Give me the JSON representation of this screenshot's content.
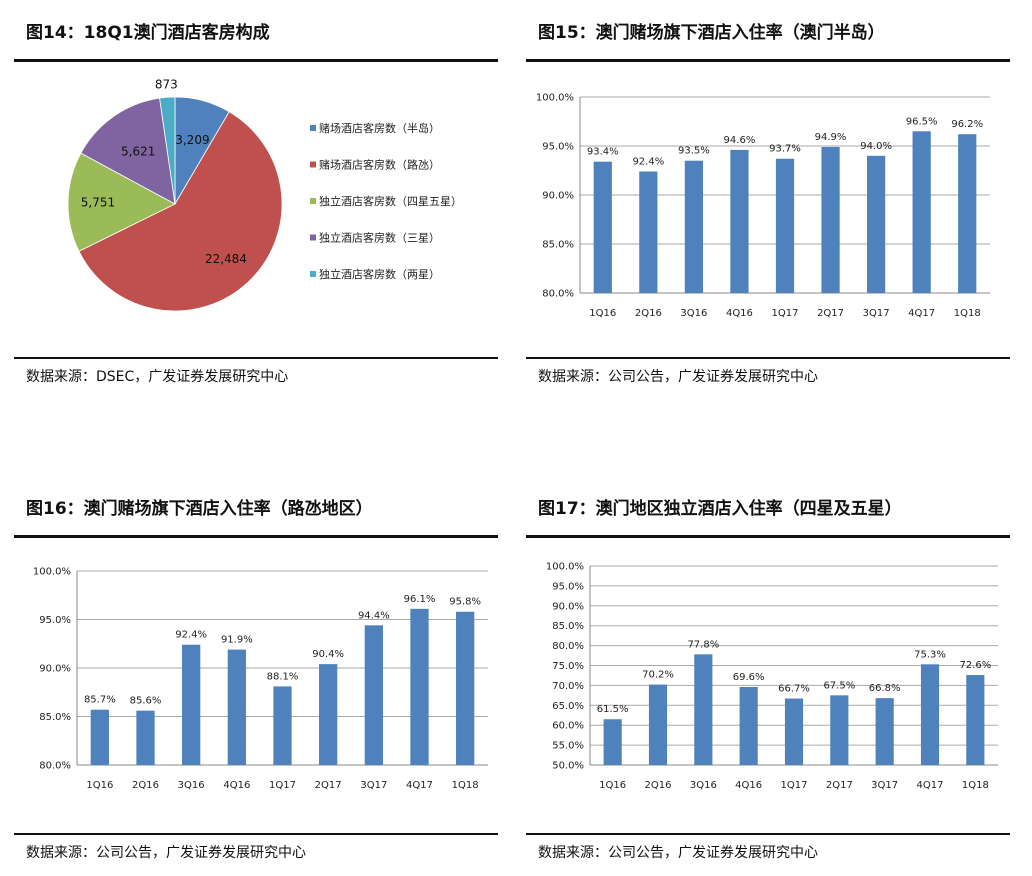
{
  "panels": [
    {
      "title": "图14：18Q1澳门酒店客房构成",
      "source": "数据来源：DSEC，广发证券发展研究中心"
    },
    {
      "title": "图15：澳门赌场旗下酒店入住率（澳门半岛）",
      "source": "数据来源：公司公告，广发证券发展研究中心"
    },
    {
      "title": "图16：澳门赌场旗下酒店入住率（路氹地区）",
      "source": "数据来源：公司公告，广发证券发展研究中心"
    },
    {
      "title": "图17：澳门地区独立酒店入住率（四星及五星）",
      "source": "数据来源：公司公告，广发证券发展研究中心"
    }
  ],
  "chart_data": [
    {
      "type": "pie",
      "legend_position": "right",
      "labels": [
        "赌场酒店客房数（半岛）",
        "赌场酒店客房数（路氹）",
        "独立酒店客房数（四星五星）",
        "独立酒店客房数（三星）",
        "独立酒店客房数（两星）"
      ],
      "values": [
        3209,
        22484,
        5751,
        5621,
        873
      ],
      "value_labels": [
        "3,209",
        "22,484",
        "5,751",
        "5,621",
        "873"
      ],
      "colors": [
        "#4f81bd",
        "#c0504d",
        "#9bbb59",
        "#8064a2",
        "#4bacc6"
      ]
    },
    {
      "type": "bar",
      "categories": [
        "1Q16",
        "2Q16",
        "3Q16",
        "4Q16",
        "1Q17",
        "2Q17",
        "3Q17",
        "4Q17",
        "1Q18"
      ],
      "values": [
        93.4,
        92.4,
        93.5,
        94.6,
        93.7,
        94.9,
        94.0,
        96.5,
        96.2
      ],
      "ylim": [
        80,
        100
      ],
      "yticks": [
        80,
        85,
        90,
        95,
        100
      ],
      "grid": true,
      "color": "#4f81bd"
    },
    {
      "type": "bar",
      "categories": [
        "1Q16",
        "2Q16",
        "3Q16",
        "4Q16",
        "1Q17",
        "2Q17",
        "3Q17",
        "4Q17",
        "1Q18"
      ],
      "values": [
        85.7,
        85.6,
        92.4,
        91.9,
        88.1,
        90.4,
        94.4,
        96.1,
        95.8
      ],
      "ylim": [
        80,
        100
      ],
      "yticks": [
        80,
        85,
        90,
        95,
        100
      ],
      "grid": true,
      "color": "#4f81bd"
    },
    {
      "type": "bar",
      "categories": [
        "1Q16",
        "2Q16",
        "3Q16",
        "4Q16",
        "1Q17",
        "2Q17",
        "3Q17",
        "4Q17",
        "1Q18"
      ],
      "values": [
        61.5,
        70.2,
        77.8,
        69.6,
        66.7,
        67.5,
        66.8,
        75.3,
        72.6
      ],
      "ylim": [
        50,
        100
      ],
      "yticks": [
        50,
        55,
        60,
        65,
        70,
        75,
        80,
        85,
        90,
        95,
        100
      ],
      "grid": true,
      "color": "#4f81bd"
    }
  ]
}
